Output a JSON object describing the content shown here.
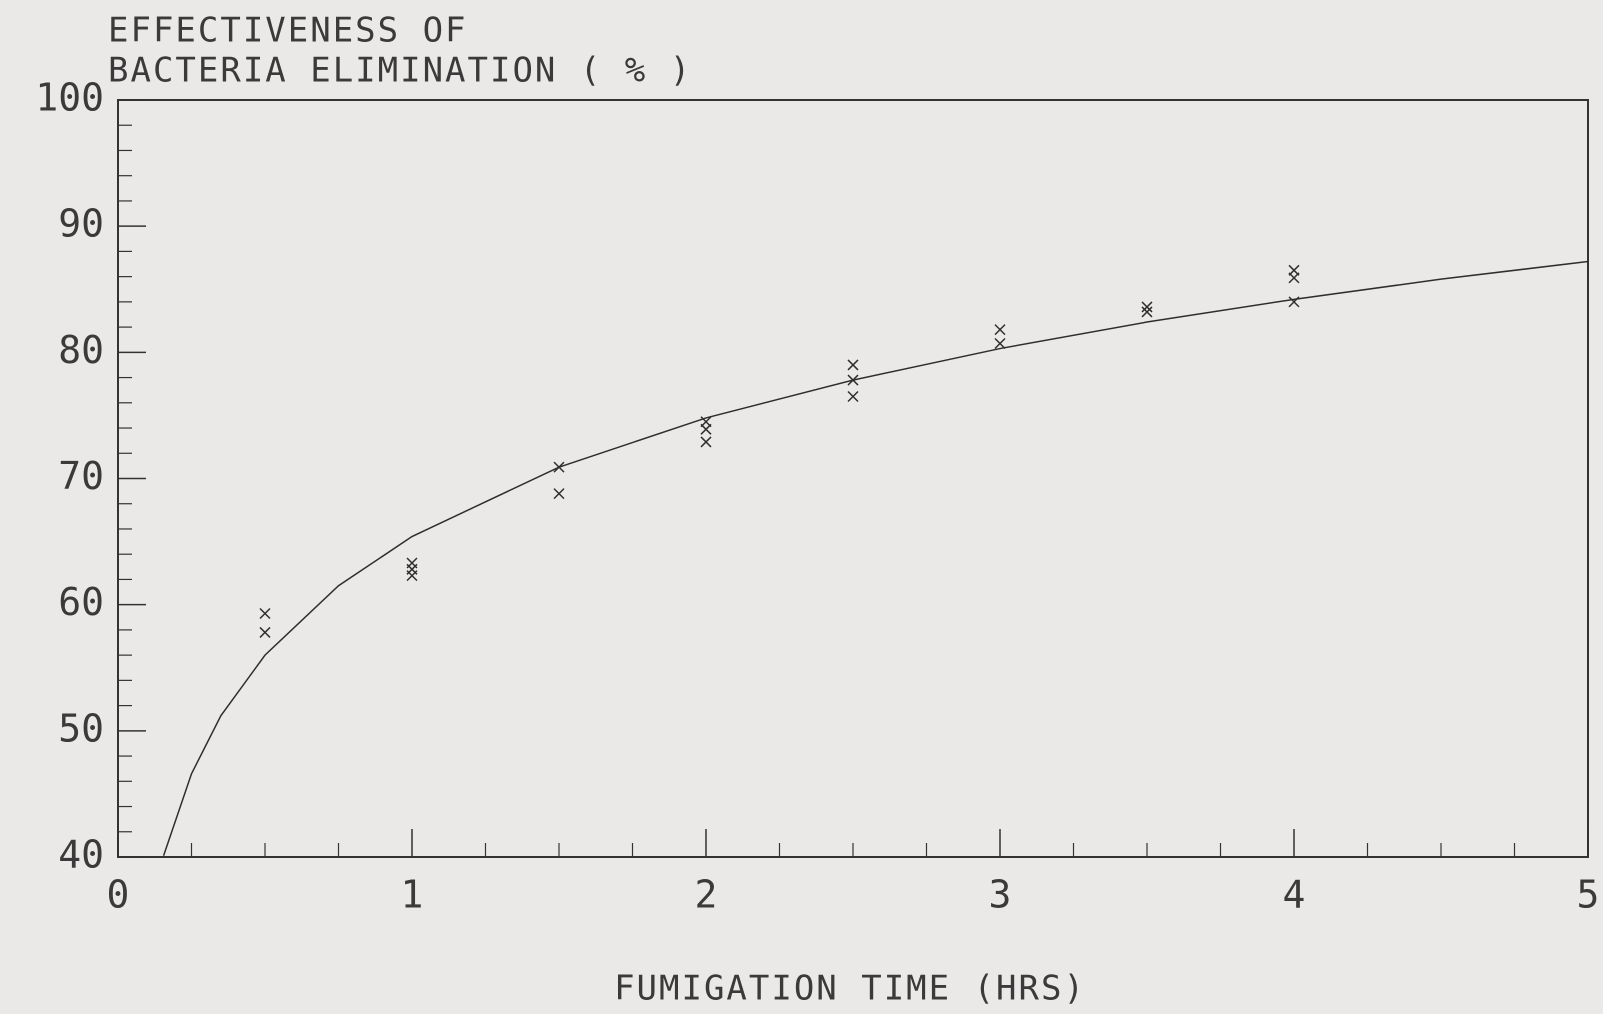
{
  "chart_data": {
    "type": "scatter",
    "ylabel": [
      "EFFECTIVENESS OF",
      "BACTERIA ELIMINATION ( % )"
    ],
    "xlabel": "FUMIGATION TIME (HRS)",
    "xlim": [
      0,
      5
    ],
    "ylim": [
      40,
      100
    ],
    "xticks": [
      0,
      1,
      2,
      3,
      4,
      5
    ],
    "yticks": [
      40,
      50,
      60,
      70,
      80,
      90,
      100
    ],
    "xminorticks": [
      0.25,
      0.5,
      0.75,
      1.25,
      1.5,
      1.75,
      2.25,
      2.5,
      2.75,
      3.25,
      3.5,
      3.75,
      4.25,
      4.5,
      4.75
    ],
    "yminorticks": [
      42,
      44,
      46,
      48,
      52,
      54,
      56,
      58,
      62,
      64,
      66,
      68,
      72,
      74,
      76,
      78,
      82,
      84,
      86,
      88,
      92,
      94,
      96,
      98
    ],
    "grid": false,
    "series": [
      {
        "type": "scatter",
        "color": "#2e2e2e",
        "x": [
          0.5,
          0.5,
          1,
          1,
          1,
          1.5,
          1.5,
          2,
          2,
          2,
          2.5,
          2.5,
          2.5,
          3,
          3,
          3.5,
          3.5,
          4,
          4,
          4
        ],
        "values": [
          59.3,
          57.8,
          63.3,
          62.8,
          62.3,
          70.9,
          68.8,
          74.5,
          73.9,
          72.9,
          79.0,
          77.8,
          76.5,
          81.8,
          80.7,
          83.6,
          83.2,
          86.5,
          85.9,
          84.0
        ]
      },
      {
        "type": "line",
        "color": "#2e2e2e",
        "x": [
          0.155,
          0.25,
          0.35,
          0.5,
          0.75,
          1,
          1.5,
          2,
          2.5,
          3,
          3.5,
          4,
          4.5,
          5
        ],
        "values": [
          40.1,
          46.6,
          51.2,
          56.0,
          61.5,
          65.4,
          70.9,
          74.8,
          77.8,
          80.3,
          82.4,
          84.2,
          85.8,
          87.2
        ]
      }
    ]
  }
}
